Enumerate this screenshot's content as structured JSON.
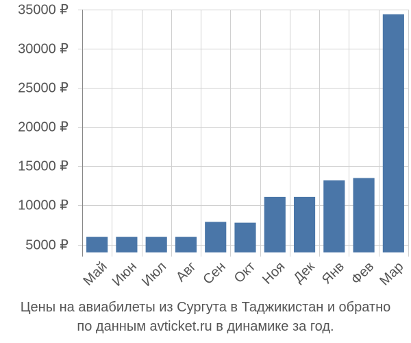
{
  "chart_data": {
    "type": "bar",
    "categories": [
      "Май",
      "Июн",
      "Июл",
      "Авг",
      "Сен",
      "Окт",
      "Ноя",
      "Дек",
      "Янв",
      "Фев",
      "Мар"
    ],
    "values": [
      6000,
      6000,
      6000,
      6000,
      7900,
      7800,
      11100,
      11100,
      13200,
      13500,
      34400
    ],
    "yticks": [
      5000,
      10000,
      15000,
      20000,
      25000,
      30000,
      35000
    ],
    "ytick_labels": [
      "5000 ₽",
      "10000 ₽",
      "15000 ₽",
      "20000 ₽",
      "25000 ₽",
      "30000 ₽",
      "35000 ₽"
    ],
    "ylim": [
      4000,
      35000
    ],
    "title": "",
    "xlabel": "",
    "ylabel": "",
    "grid": true,
    "legend": "none",
    "bar_color": "#4a76a8",
    "grid_color": "#d0d0d0",
    "text_color": "#555555"
  },
  "caption": {
    "line1": "Цены на авиабилеты из Сургута в Таджикистан и обратно",
    "line2": "по данным avticket.ru в динамике за год."
  }
}
